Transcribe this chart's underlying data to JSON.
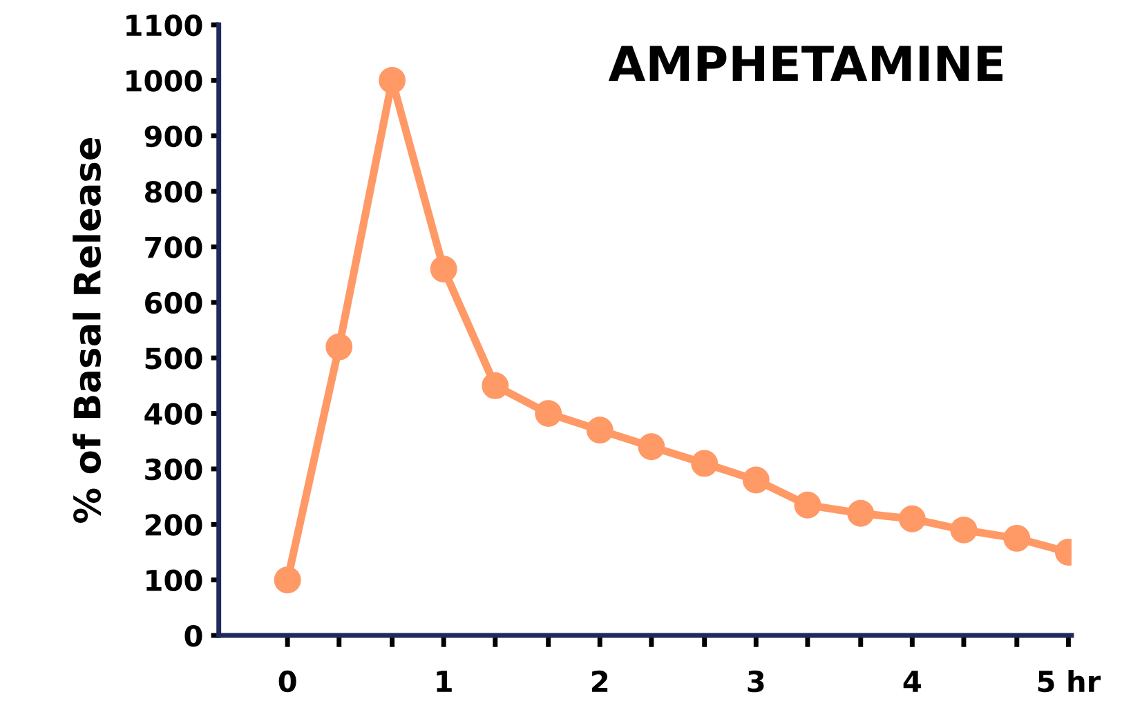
{
  "chart_data": {
    "type": "line",
    "title": "AMPHETAMINE",
    "ylabel": "% of Basal Release",
    "x": [
      0,
      0.33,
      0.67,
      1,
      1.33,
      1.67,
      2,
      2.33,
      2.67,
      3,
      3.33,
      3.67,
      4,
      4.33,
      4.67,
      5
    ],
    "series": [
      {
        "color": "#ff9966",
        "values": [
          100,
          520,
          1000,
          660,
          450,
          400,
          370,
          340,
          310,
          280,
          235,
          220,
          210,
          190,
          175,
          150
        ]
      }
    ],
    "xlim": [
      -0.44,
      5.02
    ],
    "ylim": [
      0,
      1100
    ],
    "xticks": [
      0,
      {
        "value": 0.33,
        "label": null
      },
      {
        "value": 0.67,
        "label": null
      },
      1,
      {
        "value": 1.33,
        "label": null
      },
      {
        "value": 1.67,
        "label": null
      },
      2,
      {
        "value": 2.33,
        "label": null
      },
      {
        "value": 2.67,
        "label": null
      },
      3,
      {
        "value": 3.33,
        "label": null
      },
      {
        "value": 3.67,
        "label": null
      },
      4,
      {
        "value": 4.33,
        "label": null
      },
      {
        "value": 4.67,
        "label": null
      },
      {
        "value": 5,
        "label": "5 hr"
      }
    ],
    "yticks": [
      0,
      100,
      200,
      300,
      400,
      500,
      600,
      700,
      800,
      900,
      1000,
      1100
    ],
    "marker": "circle",
    "line_style": "solid",
    "grid": false,
    "legend": false
  }
}
